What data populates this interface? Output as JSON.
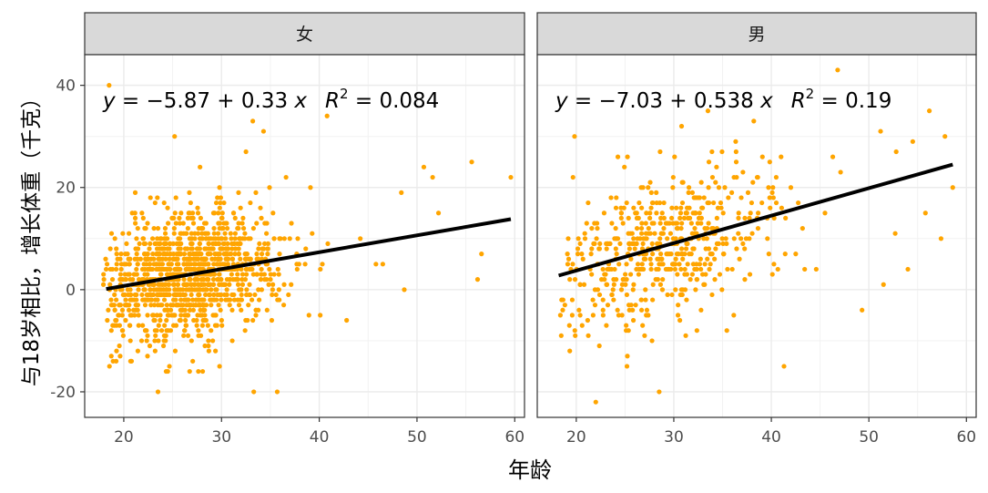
{
  "chart_data": {
    "type": "scatter",
    "xlabel": "年龄",
    "ylabel": "与18岁相比，增长体重（千克）",
    "xlim": [
      16,
      61
    ],
    "ylim": [
      -25,
      46
    ],
    "x_ticks": [
      20,
      30,
      40,
      50,
      60
    ],
    "y_ticks": [
      -20,
      0,
      20,
      40
    ],
    "grid": true,
    "point_color": "#FFA500",
    "line_color": "#000000",
    "panels": [
      {
        "strip": "女",
        "equation": {
          "y": "y",
          "eq": " = −5.87 + 0.33 ",
          "x": "x",
          "r": "R",
          "sup": "2",
          "r2": " = 0.084"
        },
        "fit": {
          "intercept": -5.87,
          "slope": 0.33,
          "x_range": [
            18.2,
            59.6
          ]
        },
        "points": [
          [
            18.5,
            40
          ],
          [
            59.6,
            22
          ],
          [
            56.6,
            7
          ],
          [
            56.2,
            2
          ],
          [
            55.6,
            25
          ],
          [
            51.6,
            22
          ],
          [
            48.4,
            19
          ],
          [
            52.2,
            15
          ],
          [
            50.7,
            24
          ],
          [
            42.8,
            -6
          ],
          [
            45.8,
            5
          ],
          [
            34.3,
            31
          ],
          [
            36.6,
            22
          ],
          [
            33.2,
            33
          ],
          [
            25.2,
            30
          ],
          [
            32.5,
            27
          ],
          [
            27.8,
            24
          ],
          [
            23.5,
            -20
          ],
          [
            33.3,
            -20
          ],
          [
            35.7,
            -20
          ],
          [
            22.2,
            -8
          ],
          [
            24.5,
            -16
          ],
          [
            29.8,
            -15
          ],
          [
            31.1,
            -10
          ],
          [
            40.1,
            -5
          ],
          [
            40.8,
            34
          ],
          [
            44.2,
            10
          ],
          [
            46.5,
            5
          ],
          [
            48.7,
            0
          ],
          [
            39.1,
            20
          ],
          [
            37.8,
            10
          ]
        ],
        "cloud": {
          "count": 1150,
          "x_mean": 26.5,
          "x_sd": 4.6,
          "x_min": 18.2,
          "x_max": 46,
          "resid_sd": 6.0,
          "seed": 17
        }
      },
      {
        "strip": "男",
        "equation": {
          "y": "y",
          "eq": " = −7.03 + 0.538 ",
          "x": "x",
          "r": "R",
          "sup": "2",
          "r2": " = 0.19"
        },
        "fit": {
          "intercept": -7.03,
          "slope": 0.538,
          "x_range": [
            18.2,
            58.6
          ]
        },
        "points": [
          [
            46.8,
            43
          ],
          [
            56.2,
            35
          ],
          [
            51.2,
            31
          ],
          [
            57.8,
            30
          ],
          [
            58.6,
            20
          ],
          [
            52.8,
            27
          ],
          [
            54.5,
            29
          ],
          [
            49.3,
            -4
          ],
          [
            54.0,
            4
          ],
          [
            51.5,
            1
          ],
          [
            52.7,
            11
          ],
          [
            41.3,
            -15
          ],
          [
            28.5,
            -20
          ],
          [
            22.0,
            -22
          ],
          [
            25.2,
            -15
          ],
          [
            33.5,
            35
          ],
          [
            30.8,
            32
          ],
          [
            38.2,
            33
          ],
          [
            42.5,
            7
          ],
          [
            44.6,
            4
          ],
          [
            47.1,
            23
          ],
          [
            46.3,
            26
          ],
          [
            55.8,
            15
          ],
          [
            57.4,
            10
          ],
          [
            36.4,
            25
          ],
          [
            39.6,
            10
          ],
          [
            42.0,
            20
          ],
          [
            45.5,
            15
          ],
          [
            43.2,
            12
          ],
          [
            40.5,
            22
          ]
        ],
        "cloud": {
          "count": 520,
          "x_mean": 29.0,
          "x_sd": 5.6,
          "x_min": 18.2,
          "x_max": 46,
          "resid_sd": 7.2,
          "seed": 91
        }
      }
    ]
  }
}
